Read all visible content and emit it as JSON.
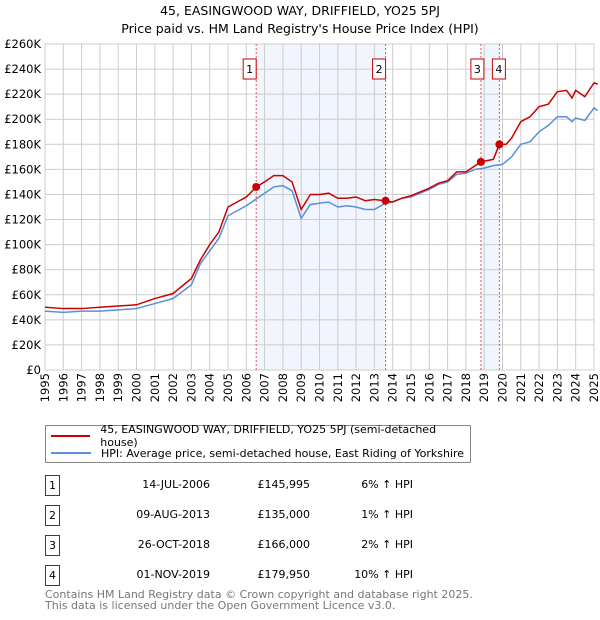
{
  "chart_data": {
    "type": "line",
    "title": "45, EASINGWOOD WAY, DRIFFIELD, YO25 5PJ",
    "subtitle": "Price paid vs. HM Land Registry's House Price Index (HPI)",
    "xlim": [
      1995,
      2025
    ],
    "ylim": [
      0,
      260000
    ],
    "y_ticks": [
      0,
      20000,
      40000,
      60000,
      80000,
      100000,
      120000,
      140000,
      160000,
      180000,
      200000,
      220000,
      240000,
      260000
    ],
    "y_tick_labels": [
      "£0",
      "£20K",
      "£40K",
      "£60K",
      "£80K",
      "£100K",
      "£120K",
      "£140K",
      "£160K",
      "£180K",
      "£200K",
      "£220K",
      "£240K",
      "£260K"
    ],
    "x_tick_labels": [
      "1995",
      "1996",
      "1997",
      "1998",
      "1999",
      "2000",
      "2001",
      "2002",
      "2003",
      "2004",
      "2005",
      "2006",
      "2007",
      "2008",
      "2009",
      "2010",
      "2011",
      "2012",
      "2013",
      "2014",
      "2015",
      "2016",
      "2017",
      "2018",
      "2019",
      "2020",
      "2021",
      "2022",
      "2023",
      "2024",
      "2025"
    ],
    "grid": true,
    "series": [
      {
        "name": "45, EASINGWOOD WAY, DRIFFIELD, YO25 5PJ (semi-detached house)",
        "color": "#cc0000",
        "x": [
          1995,
          1996,
          1997,
          1998,
          1999,
          2000,
          2001,
          2002,
          2003,
          2003.5,
          2004,
          2004.5,
          2005,
          2005.5,
          2006,
          2006.54,
          2007,
          2007.5,
          2008,
          2008.5,
          2009,
          2009.5,
          2010,
          2010.5,
          2011,
          2011.5,
          2012,
          2012.5,
          2013,
          2013.6,
          2014,
          2014.5,
          2015,
          2015.5,
          2016,
          2016.5,
          2017,
          2017.5,
          2018,
          2018.82,
          2019.5,
          2019.83,
          2020.2,
          2020.5,
          2021,
          2021.5,
          2022,
          2022.5,
          2023,
          2023.5,
          2023.8,
          2024,
          2024.5,
          2025,
          2025.2
        ],
        "y": [
          50000,
          49000,
          49000,
          50000,
          51000,
          52000,
          57000,
          61000,
          73000,
          88000,
          100000,
          110000,
          130000,
          134000,
          138000,
          146000,
          150000,
          155000,
          155000,
          150000,
          128000,
          140000,
          140000,
          141000,
          137000,
          137000,
          138000,
          135000,
          136000,
          135000,
          134000,
          137000,
          139000,
          142000,
          145000,
          149000,
          151000,
          158000,
          158000,
          166000,
          168000,
          180000,
          180000,
          185000,
          198000,
          202000,
          210000,
          212000,
          222000,
          223000,
          217000,
          223000,
          218000,
          229000,
          228000
        ]
      },
      {
        "name": "HPI: Average price, semi-detached house, East Riding of Yorkshire",
        "color": "#5b8fd6",
        "x": [
          1995,
          1996,
          1997,
          1998,
          1999,
          2000,
          2001,
          2002,
          2003,
          2003.5,
          2004,
          2004.5,
          2005,
          2005.5,
          2006,
          2006.5,
          2007,
          2007.5,
          2008,
          2008.5,
          2009,
          2009.5,
          2010,
          2010.5,
          2011,
          2011.5,
          2012,
          2012.5,
          2013,
          2013.6,
          2014,
          2014.5,
          2015,
          2015.5,
          2016,
          2016.5,
          2017,
          2017.5,
          2018,
          2018.5,
          2019,
          2019.5,
          2020,
          2020.5,
          2021,
          2021.5,
          2022,
          2022.5,
          2023,
          2023.5,
          2023.8,
          2024,
          2024.5,
          2025,
          2025.2
        ],
        "y": [
          47000,
          46000,
          47000,
          47000,
          48000,
          49000,
          53000,
          57000,
          68000,
          85000,
          95000,
          105000,
          123000,
          127000,
          131000,
          136000,
          141000,
          146000,
          147000,
          143000,
          121000,
          132000,
          133000,
          134000,
          130000,
          131000,
          130000,
          128000,
          128000,
          133000,
          134000,
          137000,
          138000,
          141000,
          144000,
          148000,
          150000,
          156000,
          157000,
          160000,
          161000,
          163000,
          164000,
          170000,
          180000,
          182000,
          190000,
          195000,
          202000,
          202000,
          198000,
          201000,
          199000,
          209000,
          207000
        ]
      }
    ],
    "sales": [
      {
        "id": "1",
        "x": 2006.54,
        "y": 145995,
        "date": "14-JUL-2006",
        "price": "£145,995",
        "hpi": "6% ↑ HPI"
      },
      {
        "id": "2",
        "x": 2013.61,
        "y": 135000,
        "date": "09-AUG-2013",
        "price": "£135,000",
        "hpi": "1% ↑ HPI"
      },
      {
        "id": "3",
        "x": 2018.82,
        "y": 166000,
        "date": "26-OCT-2018",
        "price": "£166,000",
        "hpi": "2% ↑ HPI"
      },
      {
        "id": "4",
        "x": 2019.83,
        "y": 179950,
        "date": "01-NOV-2019",
        "price": "£179,950",
        "hpi": "10% ↑ HPI"
      }
    ],
    "legend_placement": "bottom"
  },
  "footer": {
    "line1": "Contains HM Land Registry data © Crown copyright and database right 2025.",
    "line2": "This data is licensed under the Open Government Licence v3.0."
  }
}
